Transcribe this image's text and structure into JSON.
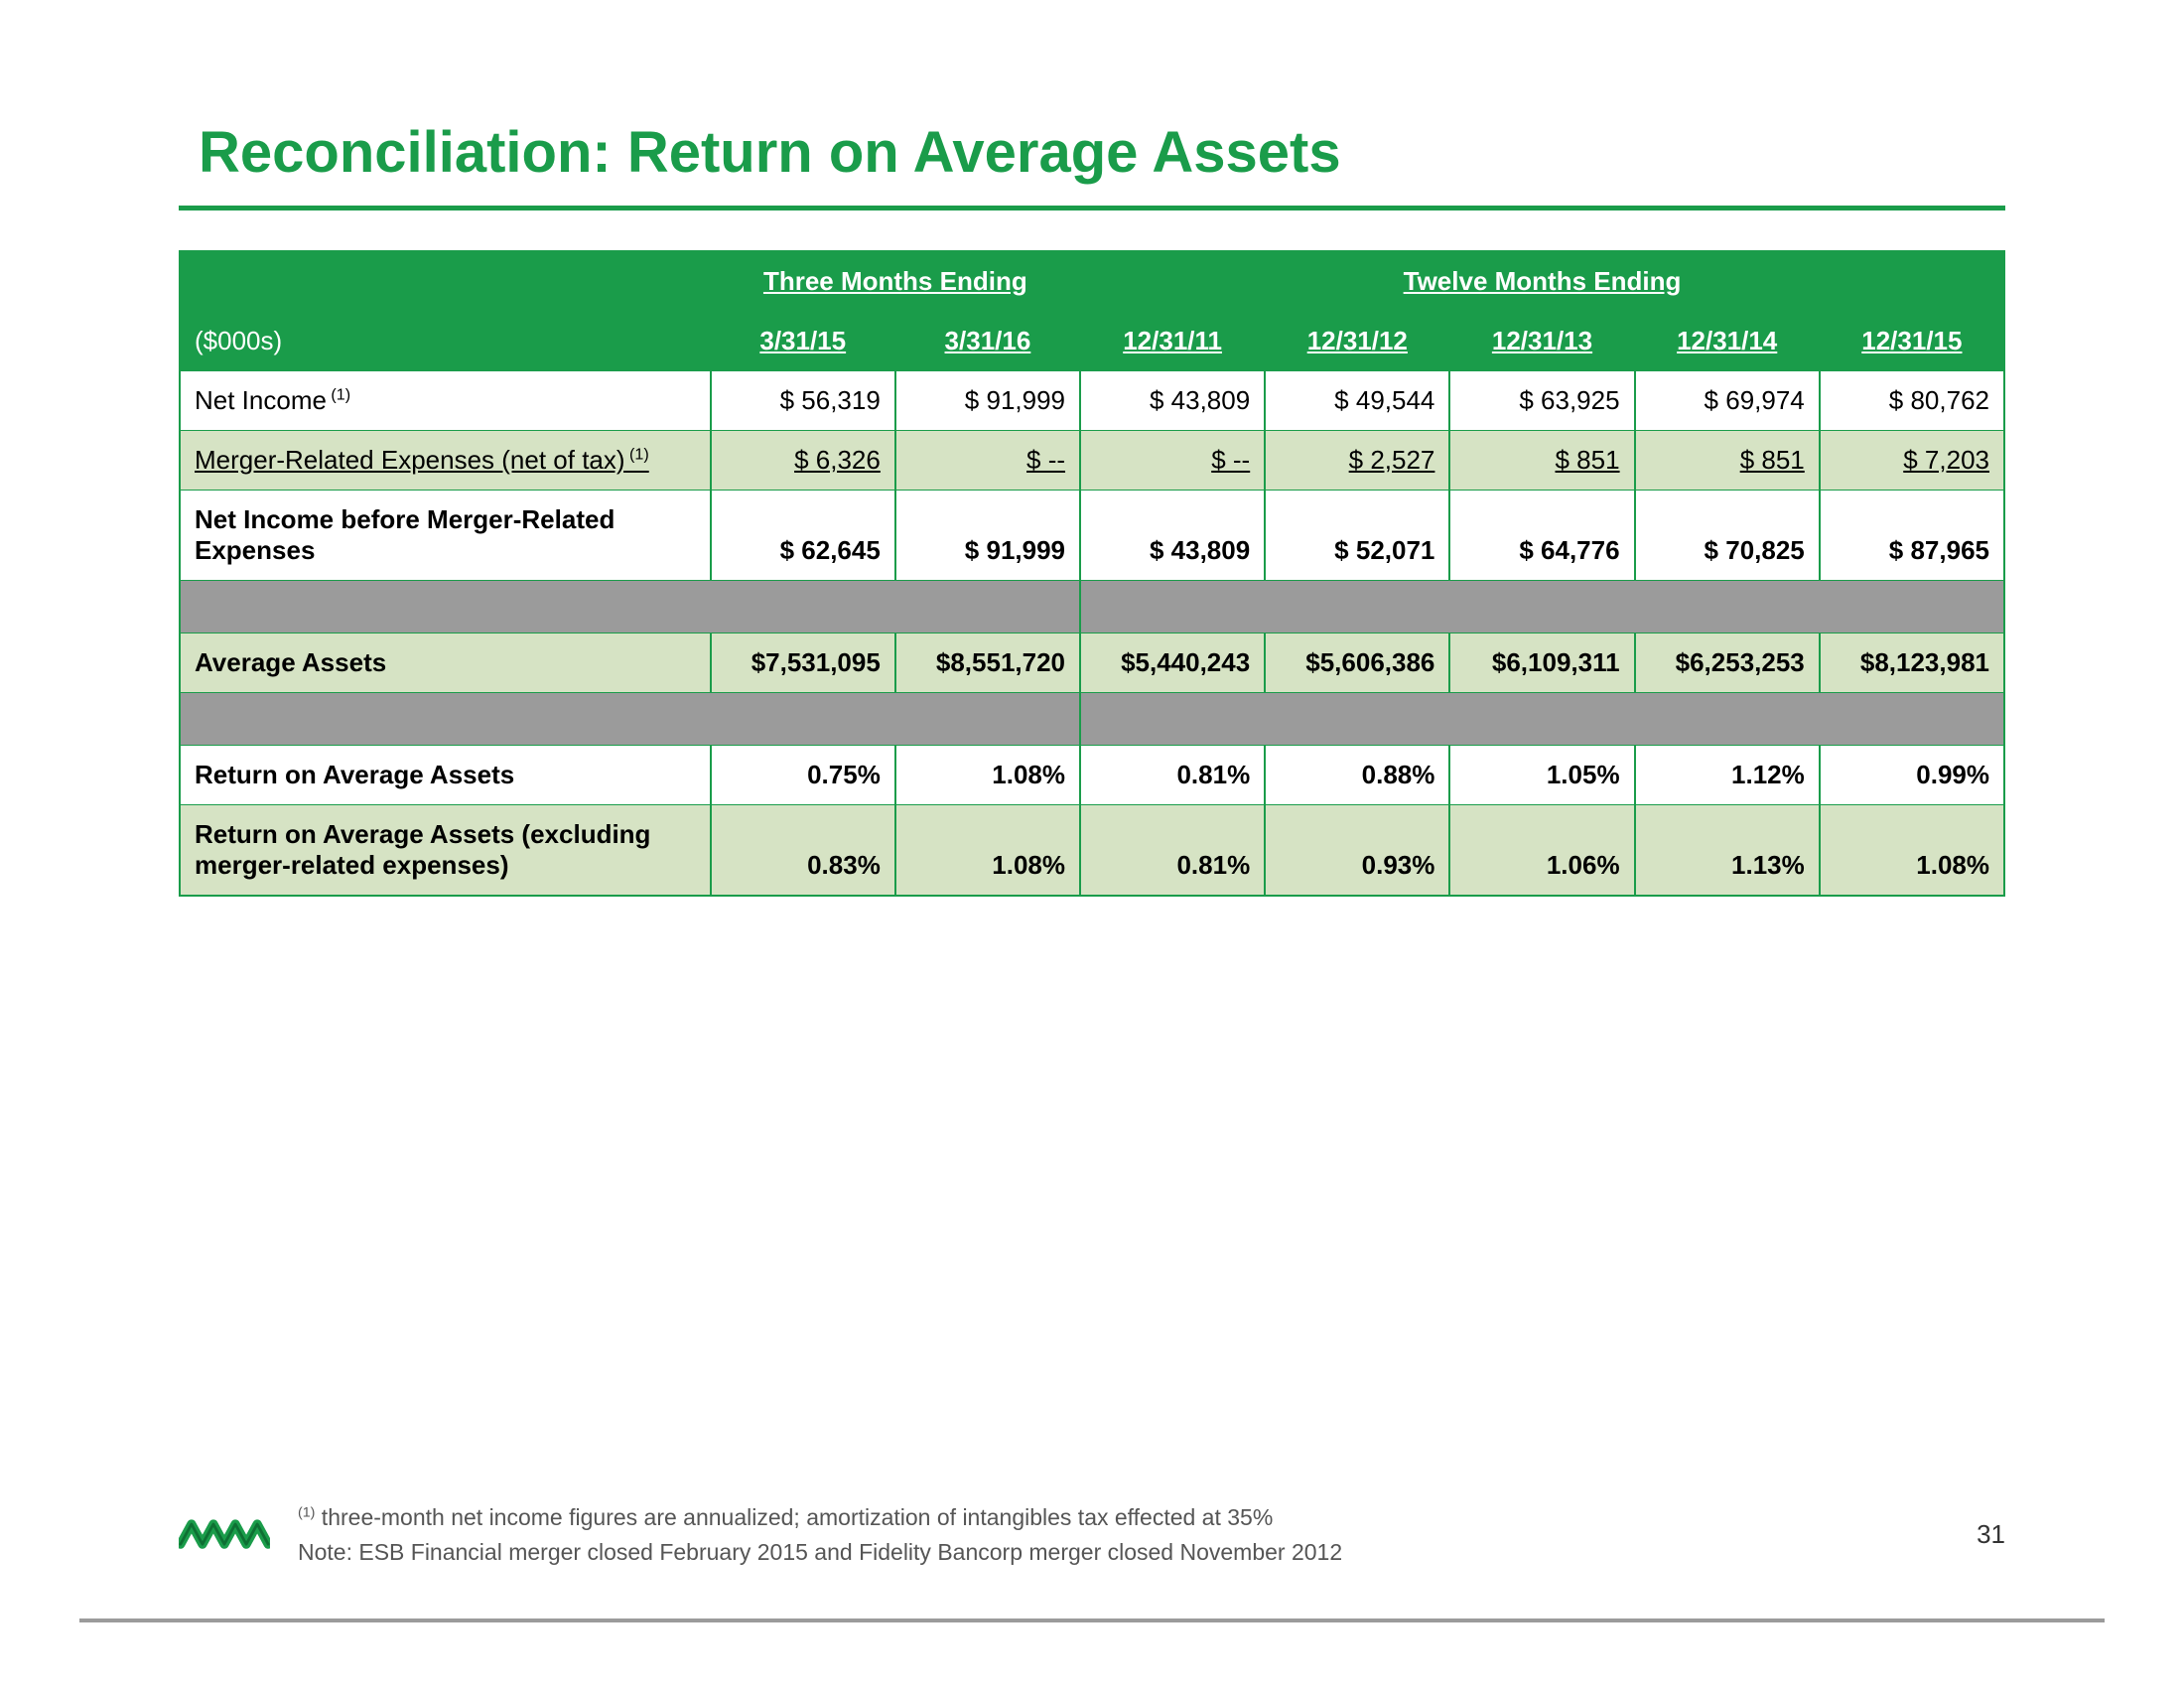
{
  "title": "Reconciliation: Return on Average Assets",
  "theme": {
    "accent": "#1a9c4a",
    "alt_row_bg": "#d6e3c4",
    "spacer_bg": "#9b9b9b",
    "page_bg": "#ffffff"
  },
  "table": {
    "unit_label": "($000s)",
    "period_headers": {
      "three_months": "Three Months Ending",
      "twelve_months": "Twelve Months Ending"
    },
    "columns": [
      "3/31/15",
      "3/31/16",
      "12/31/11",
      "12/31/12",
      "12/31/13",
      "12/31/14",
      "12/31/15"
    ],
    "rows": [
      {
        "key": "net_income",
        "label": "Net Income",
        "sup": "(1)",
        "style": "white",
        "vals": [
          "$ 56,319",
          "$ 91,999",
          "$ 43,809",
          "$ 49,544",
          "$ 63,925",
          "$ 69,974",
          "$ 80,762"
        ]
      },
      {
        "key": "merger_exp",
        "label": "Merger-Related Expenses (net of tax)",
        "sup": "(1)",
        "style": "green",
        "underline": true,
        "vals": [
          "$   6,326",
          "$       --",
          "$       --",
          "$   2,527",
          "$      851",
          "$      851",
          "$   7,203"
        ]
      },
      {
        "key": "ni_before",
        "label": "Net Income before Merger-Related Expenses",
        "style": "white",
        "bold": true,
        "vals": [
          "$ 62,645",
          "$ 91,999",
          "$ 43,809",
          "$ 52,071",
          "$ 64,776",
          "$ 70,825",
          "$ 87,965"
        ]
      },
      {
        "key": "spacer1",
        "spacer": true
      },
      {
        "key": "avg_assets",
        "label": "Average Assets",
        "style": "green",
        "bold": true,
        "small": true,
        "vals": [
          "$7,531,095",
          "$8,551,720",
          "$5,440,243",
          "$5,606,386",
          "$6,109,311",
          "$6,253,253",
          "$8,123,981"
        ]
      },
      {
        "key": "spacer2",
        "spacer": true
      },
      {
        "key": "roaa",
        "label": "Return on Average Assets",
        "style": "white",
        "bold": true,
        "vals": [
          "0.75%",
          "1.08%",
          "0.81%",
          "0.88%",
          "1.05%",
          "1.12%",
          "0.99%"
        ]
      },
      {
        "key": "roaa_ex",
        "label": "Return on Average Assets (excluding merger-related expenses)",
        "style": "green",
        "bold": true,
        "vals": [
          "0.83%",
          "1.08%",
          "0.81%",
          "0.93%",
          "1.06%",
          "1.13%",
          "1.08%"
        ]
      }
    ]
  },
  "footnotes": {
    "line1_sup": "(1)",
    "line1": " three-month net income figures are annualized; amortization of intangibles tax effected at 35%",
    "line2": "Note: ESB Financial merger closed February 2015 and Fidelity Bancorp merger closed November 2012"
  },
  "page_number": "31"
}
